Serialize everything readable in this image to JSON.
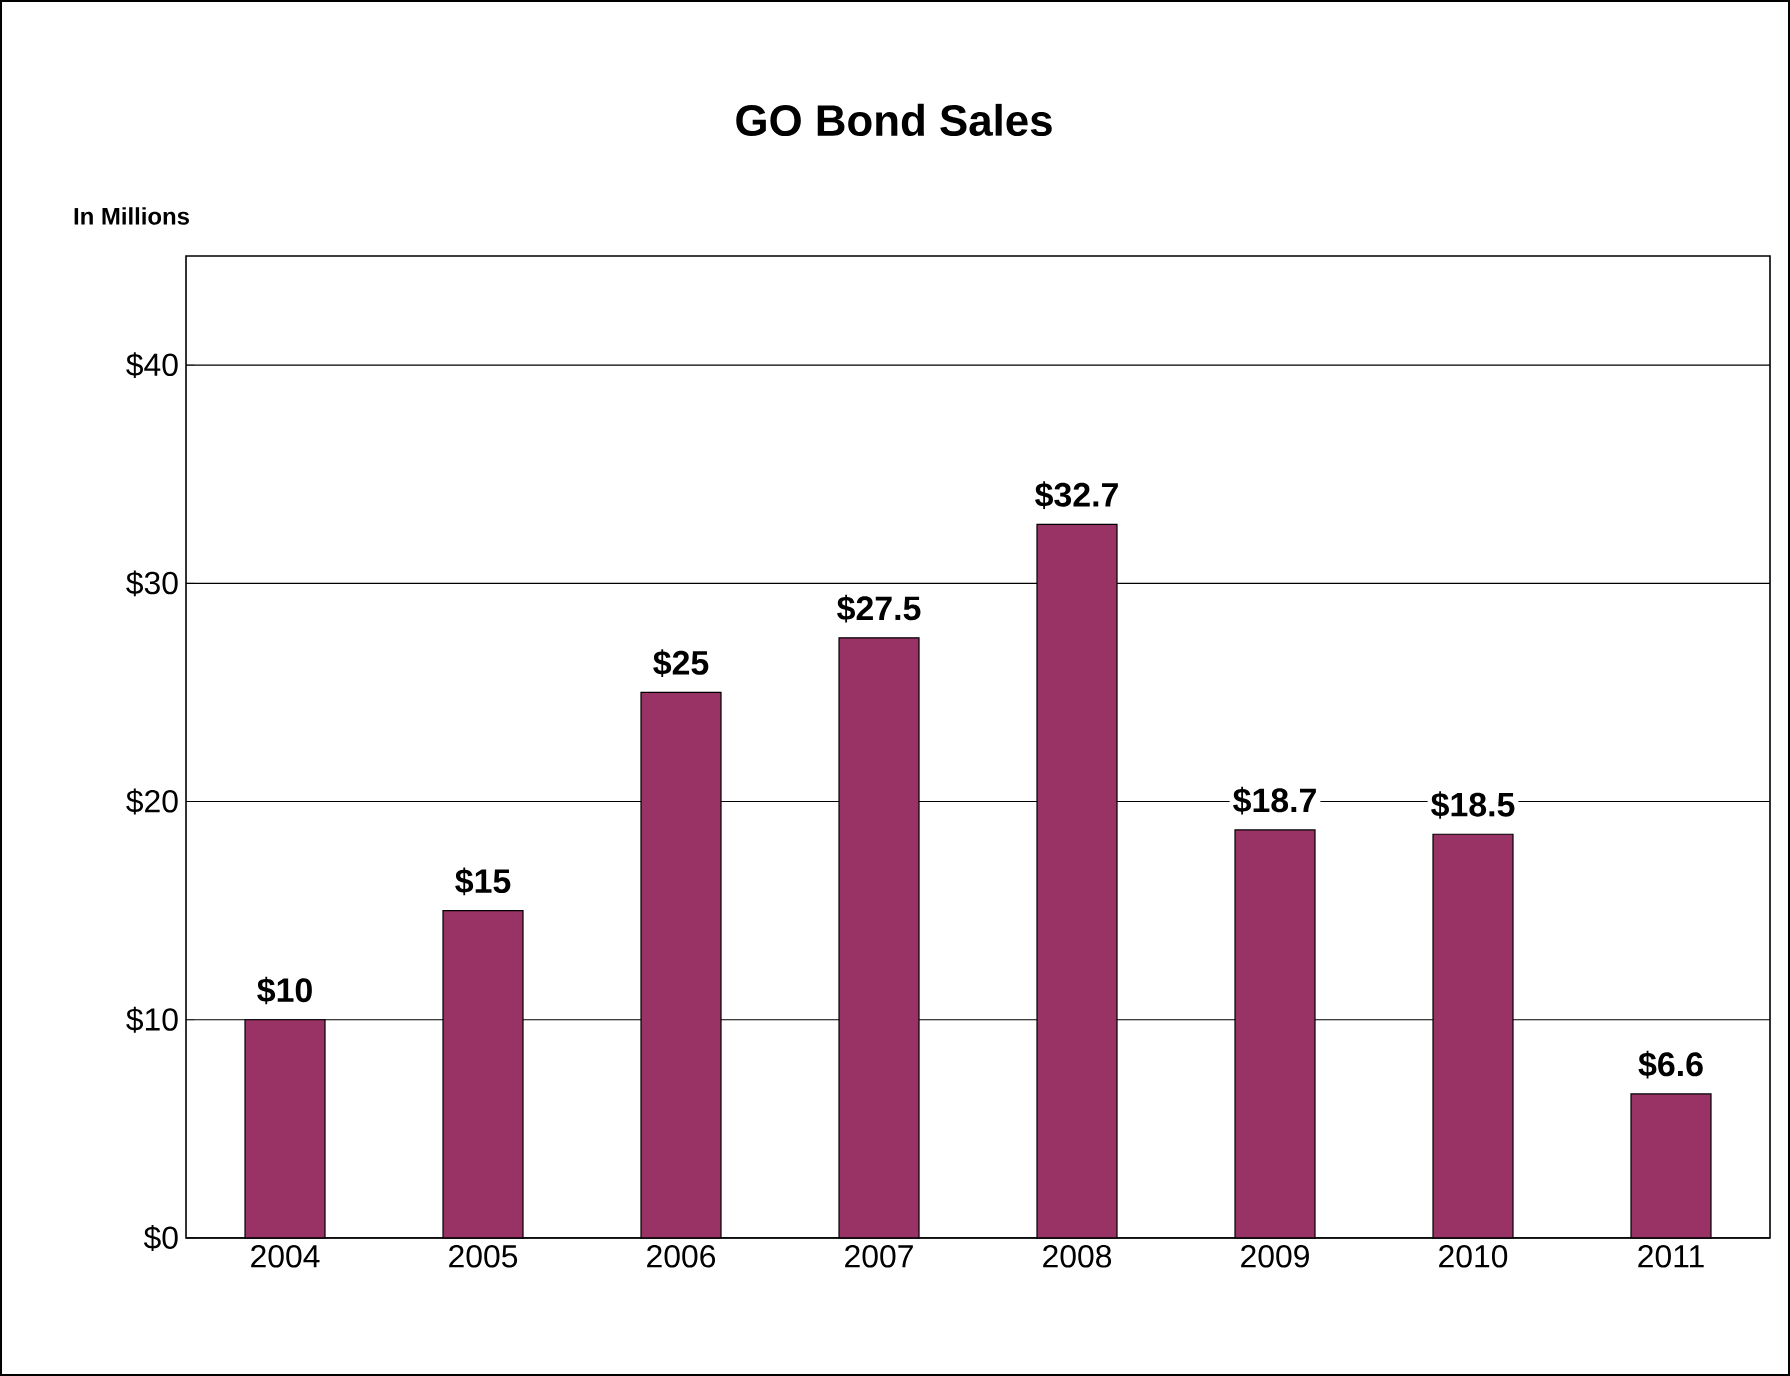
{
  "chart_data": {
    "type": "bar",
    "title": "GO Bond Sales",
    "ylabel": "In Millions",
    "categories": [
      "2004",
      "2005",
      "2006",
      "2007",
      "2008",
      "2009",
      "2010",
      "2011"
    ],
    "values": [
      10,
      15,
      25,
      27.5,
      32.7,
      18.7,
      18.5,
      6.6
    ],
    "value_labels": [
      "$10",
      "$15",
      "$25",
      "$27.5",
      "$32.7",
      "$18.7",
      "$18.5",
      "$6.6"
    ],
    "color": "#993366",
    "ylim": [
      0,
      45
    ],
    "yticks": [
      {
        "value": 0,
        "label": "$0"
      },
      {
        "value": 10,
        "label": "$10"
      },
      {
        "value": 20,
        "label": "$20"
      },
      {
        "value": 30,
        "label": "$30"
      },
      {
        "value": 40,
        "label": "$40"
      }
    ],
    "grid": "y"
  }
}
